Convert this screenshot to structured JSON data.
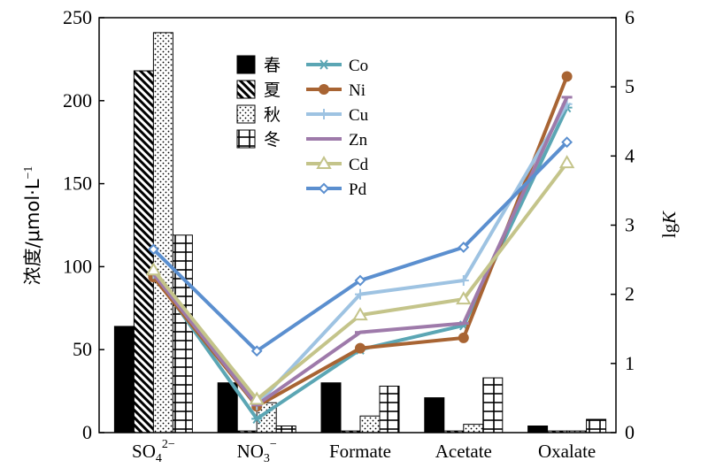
{
  "chart_data": {
    "type": "bar+line",
    "categories": [
      "SO₄²⁻",
      "NO₃⁻",
      "Formate",
      "Acetate",
      "Oxalate"
    ],
    "category_labels": [
      {
        "base": "SO",
        "sub": "4",
        "sup": "2−"
      },
      {
        "base": "NO",
        "sub": "3",
        "sup": "−"
      },
      {
        "base": "Formate",
        "sub": "",
        "sup": ""
      },
      {
        "base": "Acetate",
        "sub": "",
        "sup": ""
      },
      {
        "base": "Oxalate",
        "sub": "",
        "sup": ""
      }
    ],
    "left_axis": {
      "label_base": "浓度/μmol·L",
      "label_sup": "−1",
      "ylim": [
        0,
        250
      ],
      "ticks": [
        "0",
        "50",
        "100",
        "150",
        "200",
        "250"
      ]
    },
    "right_axis": {
      "label_prefix": "lg",
      "label_italic": "K",
      "ylim": [
        0,
        6
      ],
      "ticks": [
        "0",
        "1",
        "2",
        "3",
        "4",
        "5",
        "6"
      ]
    },
    "bar_series": [
      {
        "name": "春",
        "pattern": "solid",
        "values": [
          64,
          30,
          30,
          21,
          4
        ]
      },
      {
        "name": "夏",
        "pattern": "diagonal",
        "values": [
          218,
          1,
          1,
          1,
          1
        ]
      },
      {
        "name": "秋",
        "pattern": "dots",
        "values": [
          241,
          18,
          10,
          5,
          1
        ]
      },
      {
        "name": "冬",
        "pattern": "bricks",
        "values": [
          119,
          4,
          28,
          33,
          8
        ]
      }
    ],
    "line_series": [
      {
        "name": "Co",
        "color": "#5ba6b4",
        "marker": "asterisk",
        "values": [
          2.3,
          0.2,
          1.2,
          1.55,
          4.7
        ]
      },
      {
        "name": "Ni",
        "color": "#a86433",
        "marker": "circle",
        "values": [
          2.25,
          0.38,
          1.22,
          1.37,
          5.15
        ]
      },
      {
        "name": "Cu",
        "color": "#9ec3e2",
        "marker": "plus",
        "values": [
          2.3,
          0.4,
          2.0,
          2.2,
          4.75
        ]
      },
      {
        "name": "Zn",
        "color": "#9e7aaa",
        "marker": "dash",
        "values": [
          2.3,
          0.4,
          1.45,
          1.58,
          4.85
        ]
      },
      {
        "name": "Cd",
        "color": "#c4c48a",
        "marker": "triangle",
        "values": [
          2.35,
          0.48,
          1.7,
          1.93,
          3.9
        ]
      },
      {
        "name": "Pd",
        "color": "#5b8fcf",
        "marker": "diamond",
        "values": [
          2.65,
          1.18,
          2.2,
          2.68,
          4.2
        ]
      }
    ]
  }
}
